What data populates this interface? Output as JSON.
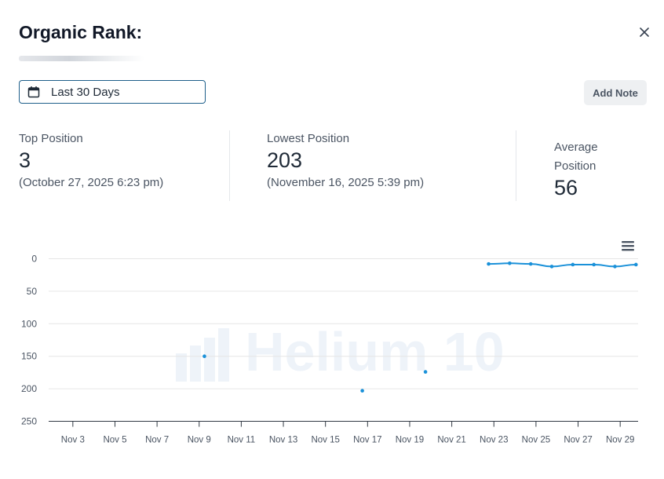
{
  "modal": {
    "title": "Organic Rank:",
    "close_icon": "close-icon"
  },
  "toolbar": {
    "date_range": "Last 30 Days",
    "calendar_icon": "calendar-icon",
    "add_note_label": "Add Note"
  },
  "stats": {
    "top": {
      "label": "Top Position",
      "value": "3",
      "date": "(October 27, 2025 6:23 pm)"
    },
    "lowest": {
      "label": "Lowest Position",
      "value": "203",
      "date": "(November 16, 2025 5:39 pm)"
    },
    "average": {
      "label_line1": "Average",
      "label_line2": "Position",
      "value": "56"
    }
  },
  "chart_menu_icon": "hamburger-menu-icon",
  "watermark": "Helium 10",
  "chart_data": {
    "type": "line",
    "title": "",
    "xlabel": "",
    "ylabel": "",
    "y_reversed": true,
    "ylim": [
      0,
      250
    ],
    "y_ticks": [
      0,
      50,
      100,
      150,
      200,
      250
    ],
    "x_range": [
      "2025-11-02",
      "2025-11-30"
    ],
    "x_ticks": [
      "Nov 3",
      "Nov 5",
      "Nov 7",
      "Nov 9",
      "Nov 11",
      "Nov 13",
      "Nov 15",
      "Nov 17",
      "Nov 19",
      "Nov 21",
      "Nov 23",
      "Nov 25",
      "Nov 27",
      "Nov 29"
    ],
    "grid": true,
    "legend": "none",
    "color": "#1a91d9",
    "series": [
      {
        "points": [
          {
            "x": "2025-11-09 06:00",
            "y": 150
          },
          {
            "x": "2025-11-16 18:00",
            "y": 203
          },
          {
            "x": "2025-11-19 18:00",
            "y": 174
          },
          {
            "x": "2025-11-22 18:00",
            "y": 8,
            "connect": true
          },
          {
            "x": "2025-11-23 18:00",
            "y": 7,
            "connect": true
          },
          {
            "x": "2025-11-24 18:00",
            "y": 8,
            "connect": true
          },
          {
            "x": "2025-11-25 18:00",
            "y": 12,
            "connect": true
          },
          {
            "x": "2025-11-26 18:00",
            "y": 9,
            "connect": true
          },
          {
            "x": "2025-11-27 18:00",
            "y": 9,
            "connect": true
          },
          {
            "x": "2025-11-28 18:00",
            "y": 12,
            "connect": true
          },
          {
            "x": "2025-11-29 18:00",
            "y": 9,
            "connect": true
          }
        ]
      }
    ]
  }
}
